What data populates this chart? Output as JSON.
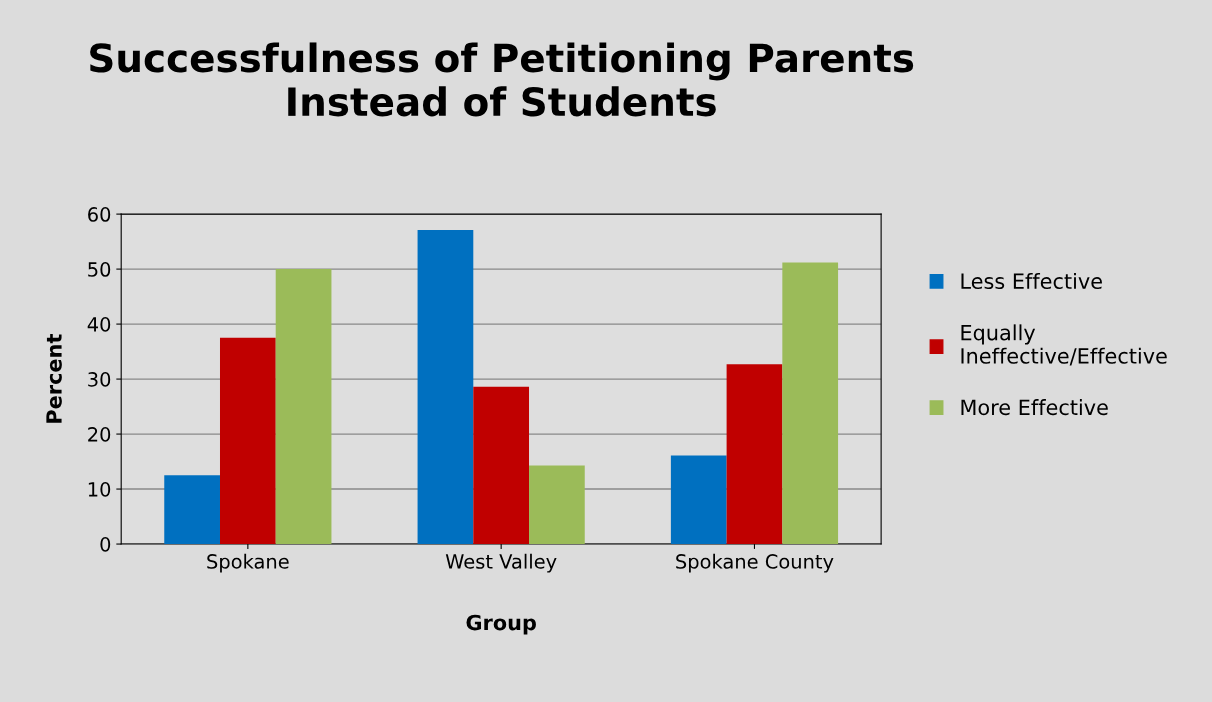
{
  "chart_data": {
    "type": "bar",
    "title": "Successfulness of Petitioning Parents Instead of Students",
    "xlabel": "Group",
    "ylabel": "Percent",
    "categories": [
      "Spokane",
      "West Valley",
      "Spokane County"
    ],
    "series": [
      {
        "name": "Less Effective",
        "color": "#0070c0",
        "values": [
          12.5,
          57.1,
          16.1
        ]
      },
      {
        "name": "Equally Ineffective/Effective",
        "color": "#c00000",
        "values": [
          37.5,
          28.6,
          32.7
        ]
      },
      {
        "name": "More Effective",
        "color": "#9bbb59",
        "values": [
          50,
          14.3,
          51.2
        ]
      }
    ],
    "ylim": [
      0,
      60
    ],
    "yticks": [
      0,
      10,
      20,
      30,
      40,
      50,
      60
    ],
    "grid": "y",
    "legend": "right"
  }
}
